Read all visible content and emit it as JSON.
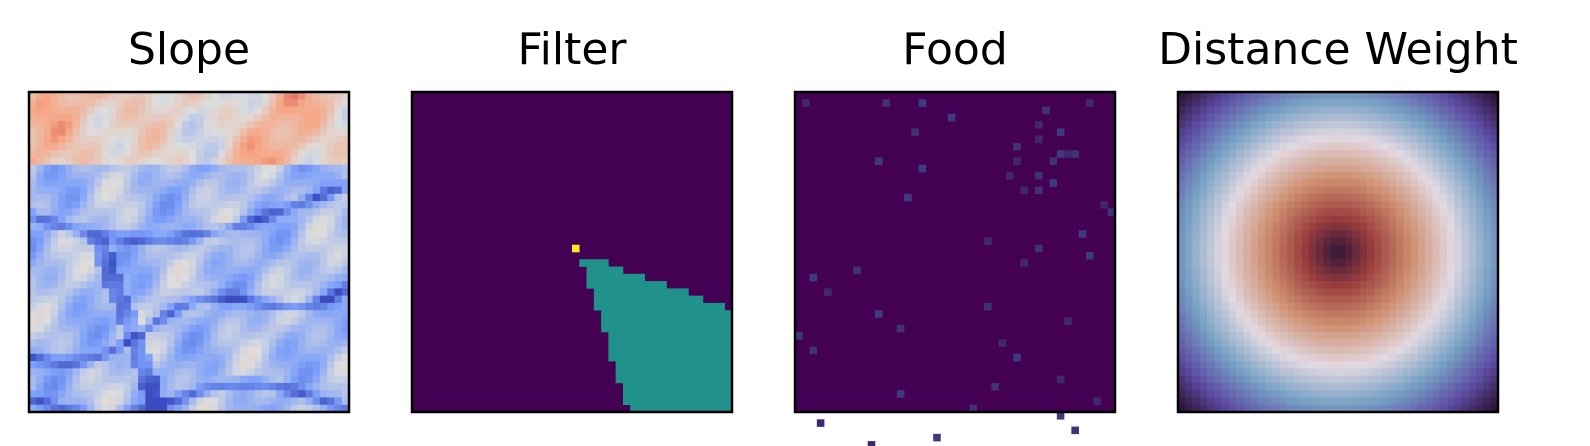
{
  "chart_data": [
    {
      "type": "heatmap",
      "title": "Slope",
      "colormap": "coolwarm",
      "grid": false,
      "ticks": "none",
      "description_of_values": "terrain slope field with dark blue ridge lines"
    },
    {
      "type": "heatmap",
      "title": "Filter",
      "colormap": "viridis",
      "grid": false,
      "ticks": "none",
      "background_value": 0,
      "wedge_value": 0.5,
      "origin_value": 1
    },
    {
      "type": "heatmap",
      "title": "Food",
      "colormap": "viridis",
      "grid": false,
      "ticks": "none",
      "sparse_cells": [
        [
          1,
          1
        ],
        [
          1,
          12
        ],
        [
          1,
          17
        ],
        [
          1,
          40
        ],
        [
          2,
          34
        ],
        [
          3,
          21
        ],
        [
          4,
          33
        ],
        [
          5,
          16
        ],
        [
          5,
          36
        ],
        [
          6,
          33
        ],
        [
          7,
          30
        ],
        [
          8,
          36
        ],
        [
          8,
          37
        ],
        [
          8,
          38
        ],
        [
          9,
          11
        ],
        [
          9,
          30
        ],
        [
          9,
          35
        ],
        [
          10,
          17
        ],
        [
          11,
          29
        ],
        [
          11,
          33
        ],
        [
          12,
          35
        ],
        [
          13,
          31
        ],
        [
          13,
          33
        ],
        [
          14,
          15
        ],
        [
          15,
          42
        ],
        [
          16,
          43
        ],
        [
          19,
          39
        ],
        [
          20,
          26
        ],
        [
          21,
          33
        ],
        [
          22,
          40
        ],
        [
          23,
          31
        ],
        [
          24,
          8
        ],
        [
          25,
          2
        ],
        [
          27,
          4
        ],
        [
          29,
          26
        ],
        [
          30,
          11
        ],
        [
          31,
          37
        ],
        [
          32,
          14
        ],
        [
          33,
          0
        ],
        [
          34,
          28
        ],
        [
          35,
          2
        ],
        [
          36,
          30
        ],
        [
          39,
          36
        ],
        [
          40,
          27
        ],
        [
          41,
          14
        ],
        [
          42,
          41
        ],
        [
          43,
          24
        ],
        [
          44,
          36
        ],
        [
          45,
          3
        ],
        [
          46,
          38
        ],
        [
          47,
          19
        ],
        [
          48,
          10
        ]
      ]
    },
    {
      "type": "heatmap",
      "title": "Distance Weight",
      "colormap": "twilight",
      "grid": false,
      "ticks": "none",
      "pattern": "radial"
    }
  ]
}
